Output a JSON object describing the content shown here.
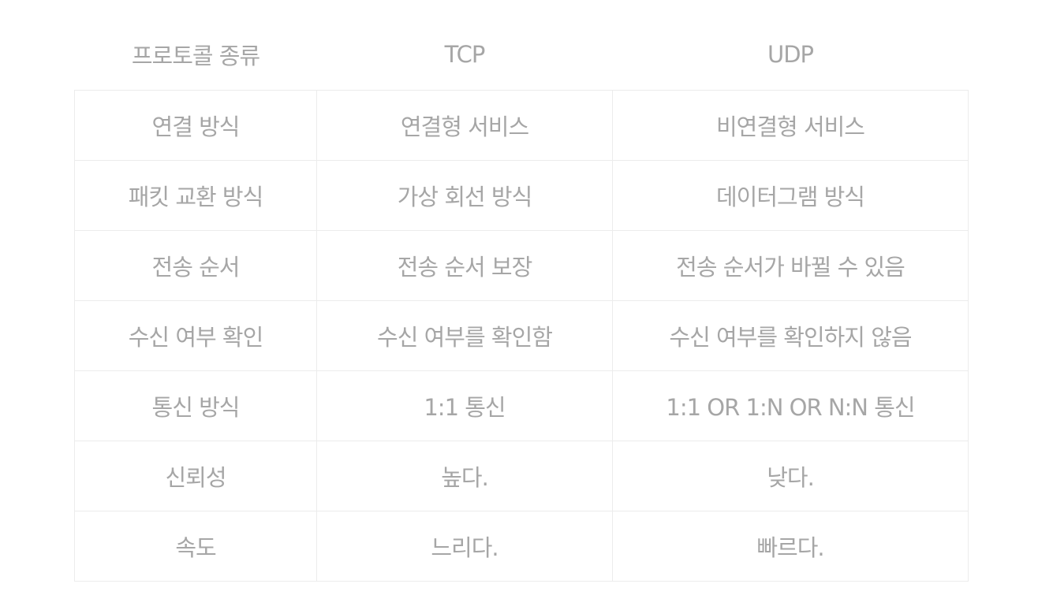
{
  "table": {
    "headers": [
      "프로토콜 종류",
      "TCP",
      "UDP"
    ],
    "rows": [
      [
        "연결 방식",
        "연결형 서비스",
        "비연결형 서비스"
      ],
      [
        "패킷 교환 방식",
        "가상 회선 방식",
        "데이터그램 방식"
      ],
      [
        "전송 순서",
        "전송 순서 보장",
        "전송 순서가 바뀔 수 있음"
      ],
      [
        "수신 여부 확인",
        "수신 여부를 확인함",
        "수신 여부를 확인하지 않음"
      ],
      [
        "통신 방식",
        "1:1 통신",
        "1:1 OR 1:N OR N:N 통신"
      ],
      [
        "신뢰성",
        "높다.",
        "낮다."
      ],
      [
        "속도",
        "느리다.",
        "빠르다."
      ]
    ]
  }
}
